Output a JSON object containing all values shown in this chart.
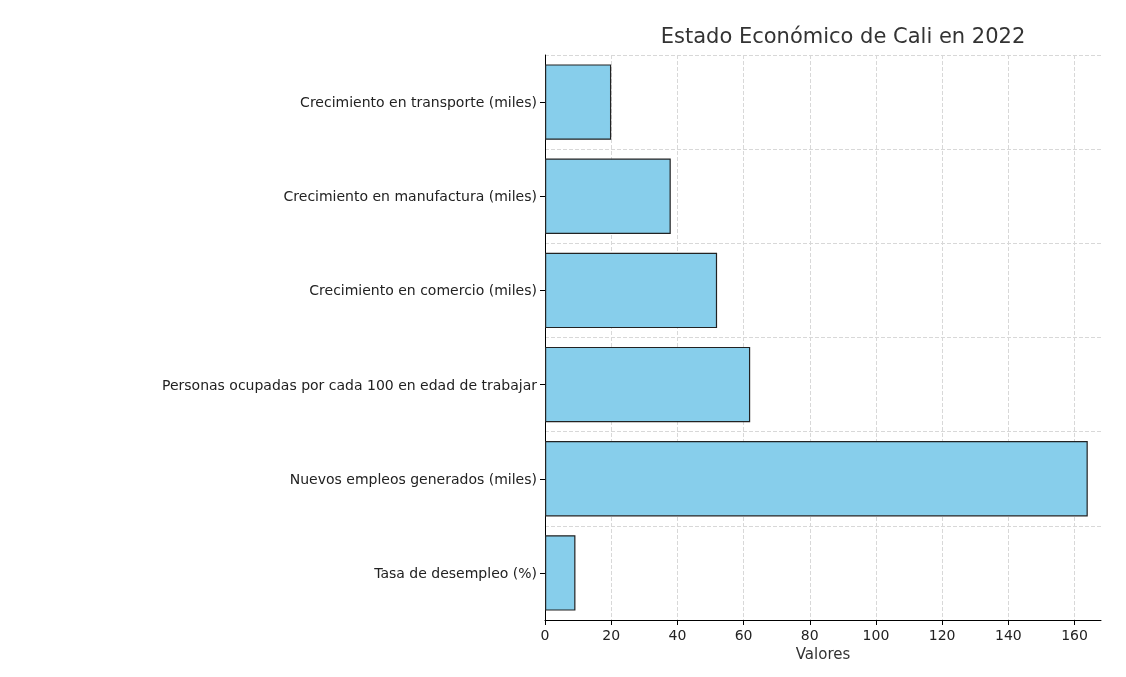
{
  "chart_data": {
    "type": "bar",
    "orientation": "horizontal",
    "title": "Estado Económico de Cali en 2022",
    "xlabel": "Valores",
    "categories": [
      "Crecimiento en transporte (miles)",
      "Crecimiento en manufactura (miles)",
      "Crecimiento en comercio (miles)",
      "Personas ocupadas por cada 100 en edad de trabajar",
      "Nuevos empleos generados (miles)",
      "Tasa de desempleo (%)"
    ],
    "values": [
      20,
      38,
      52,
      62,
      164,
      9.2
    ],
    "color": "#87ceeb",
    "xlim": [
      0,
      168
    ],
    "xticks": [
      0,
      20,
      40,
      60,
      80,
      100,
      120,
      140,
      160
    ],
    "grid": true
  }
}
